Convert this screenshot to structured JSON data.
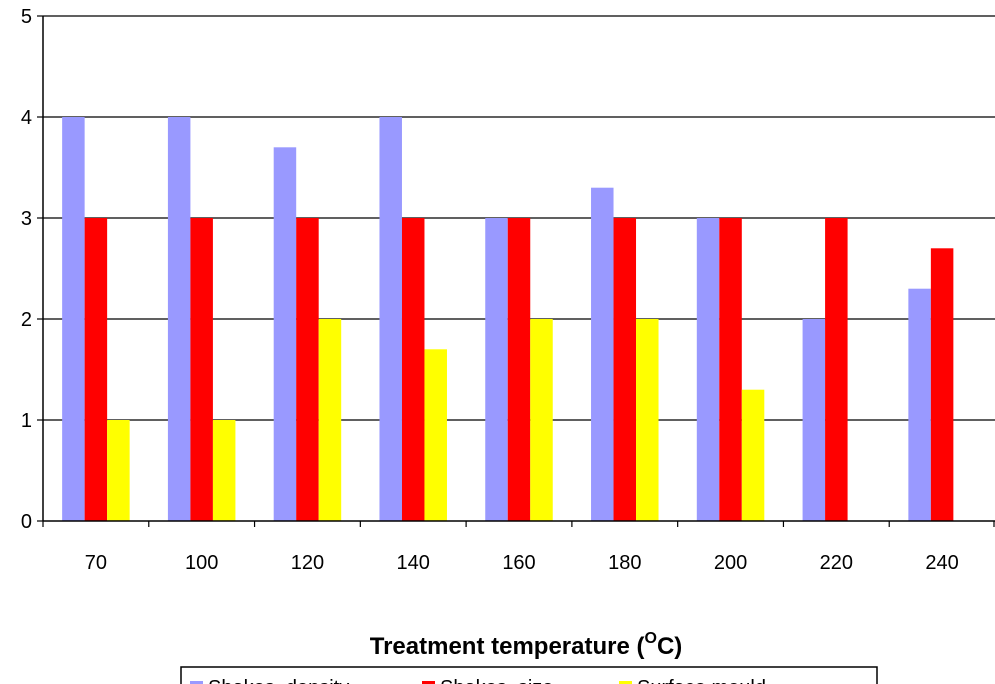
{
  "chart_data": {
    "type": "bar",
    "title": "",
    "xlabel": "Treatment temperature (",
    "xlabel_sup": "O",
    "xlabel_end": "C)",
    "ylabel": "",
    "ylim": [
      0,
      5
    ],
    "yticks": [
      0,
      1,
      2,
      3,
      4,
      5
    ],
    "grid": "horizontal",
    "legend_position": "bottom",
    "categories": [
      "70",
      "100",
      "120",
      "140",
      "160",
      "180",
      "200",
      "220",
      "240"
    ],
    "series": [
      {
        "name": "Shakes, density",
        "color": "#9999ff",
        "values": [
          4,
          4,
          3.7,
          4,
          3,
          3.3,
          3,
          2,
          2.3
        ]
      },
      {
        "name": "Shakes, size",
        "color": "#ff0000",
        "values": [
          3,
          3,
          3,
          3,
          3,
          3,
          3,
          3,
          2.7
        ]
      },
      {
        "name": "Surface mould",
        "color": "#ffff00",
        "values": [
          1,
          1,
          2,
          1.7,
          2,
          2,
          1.3,
          null,
          null
        ]
      }
    ]
  }
}
